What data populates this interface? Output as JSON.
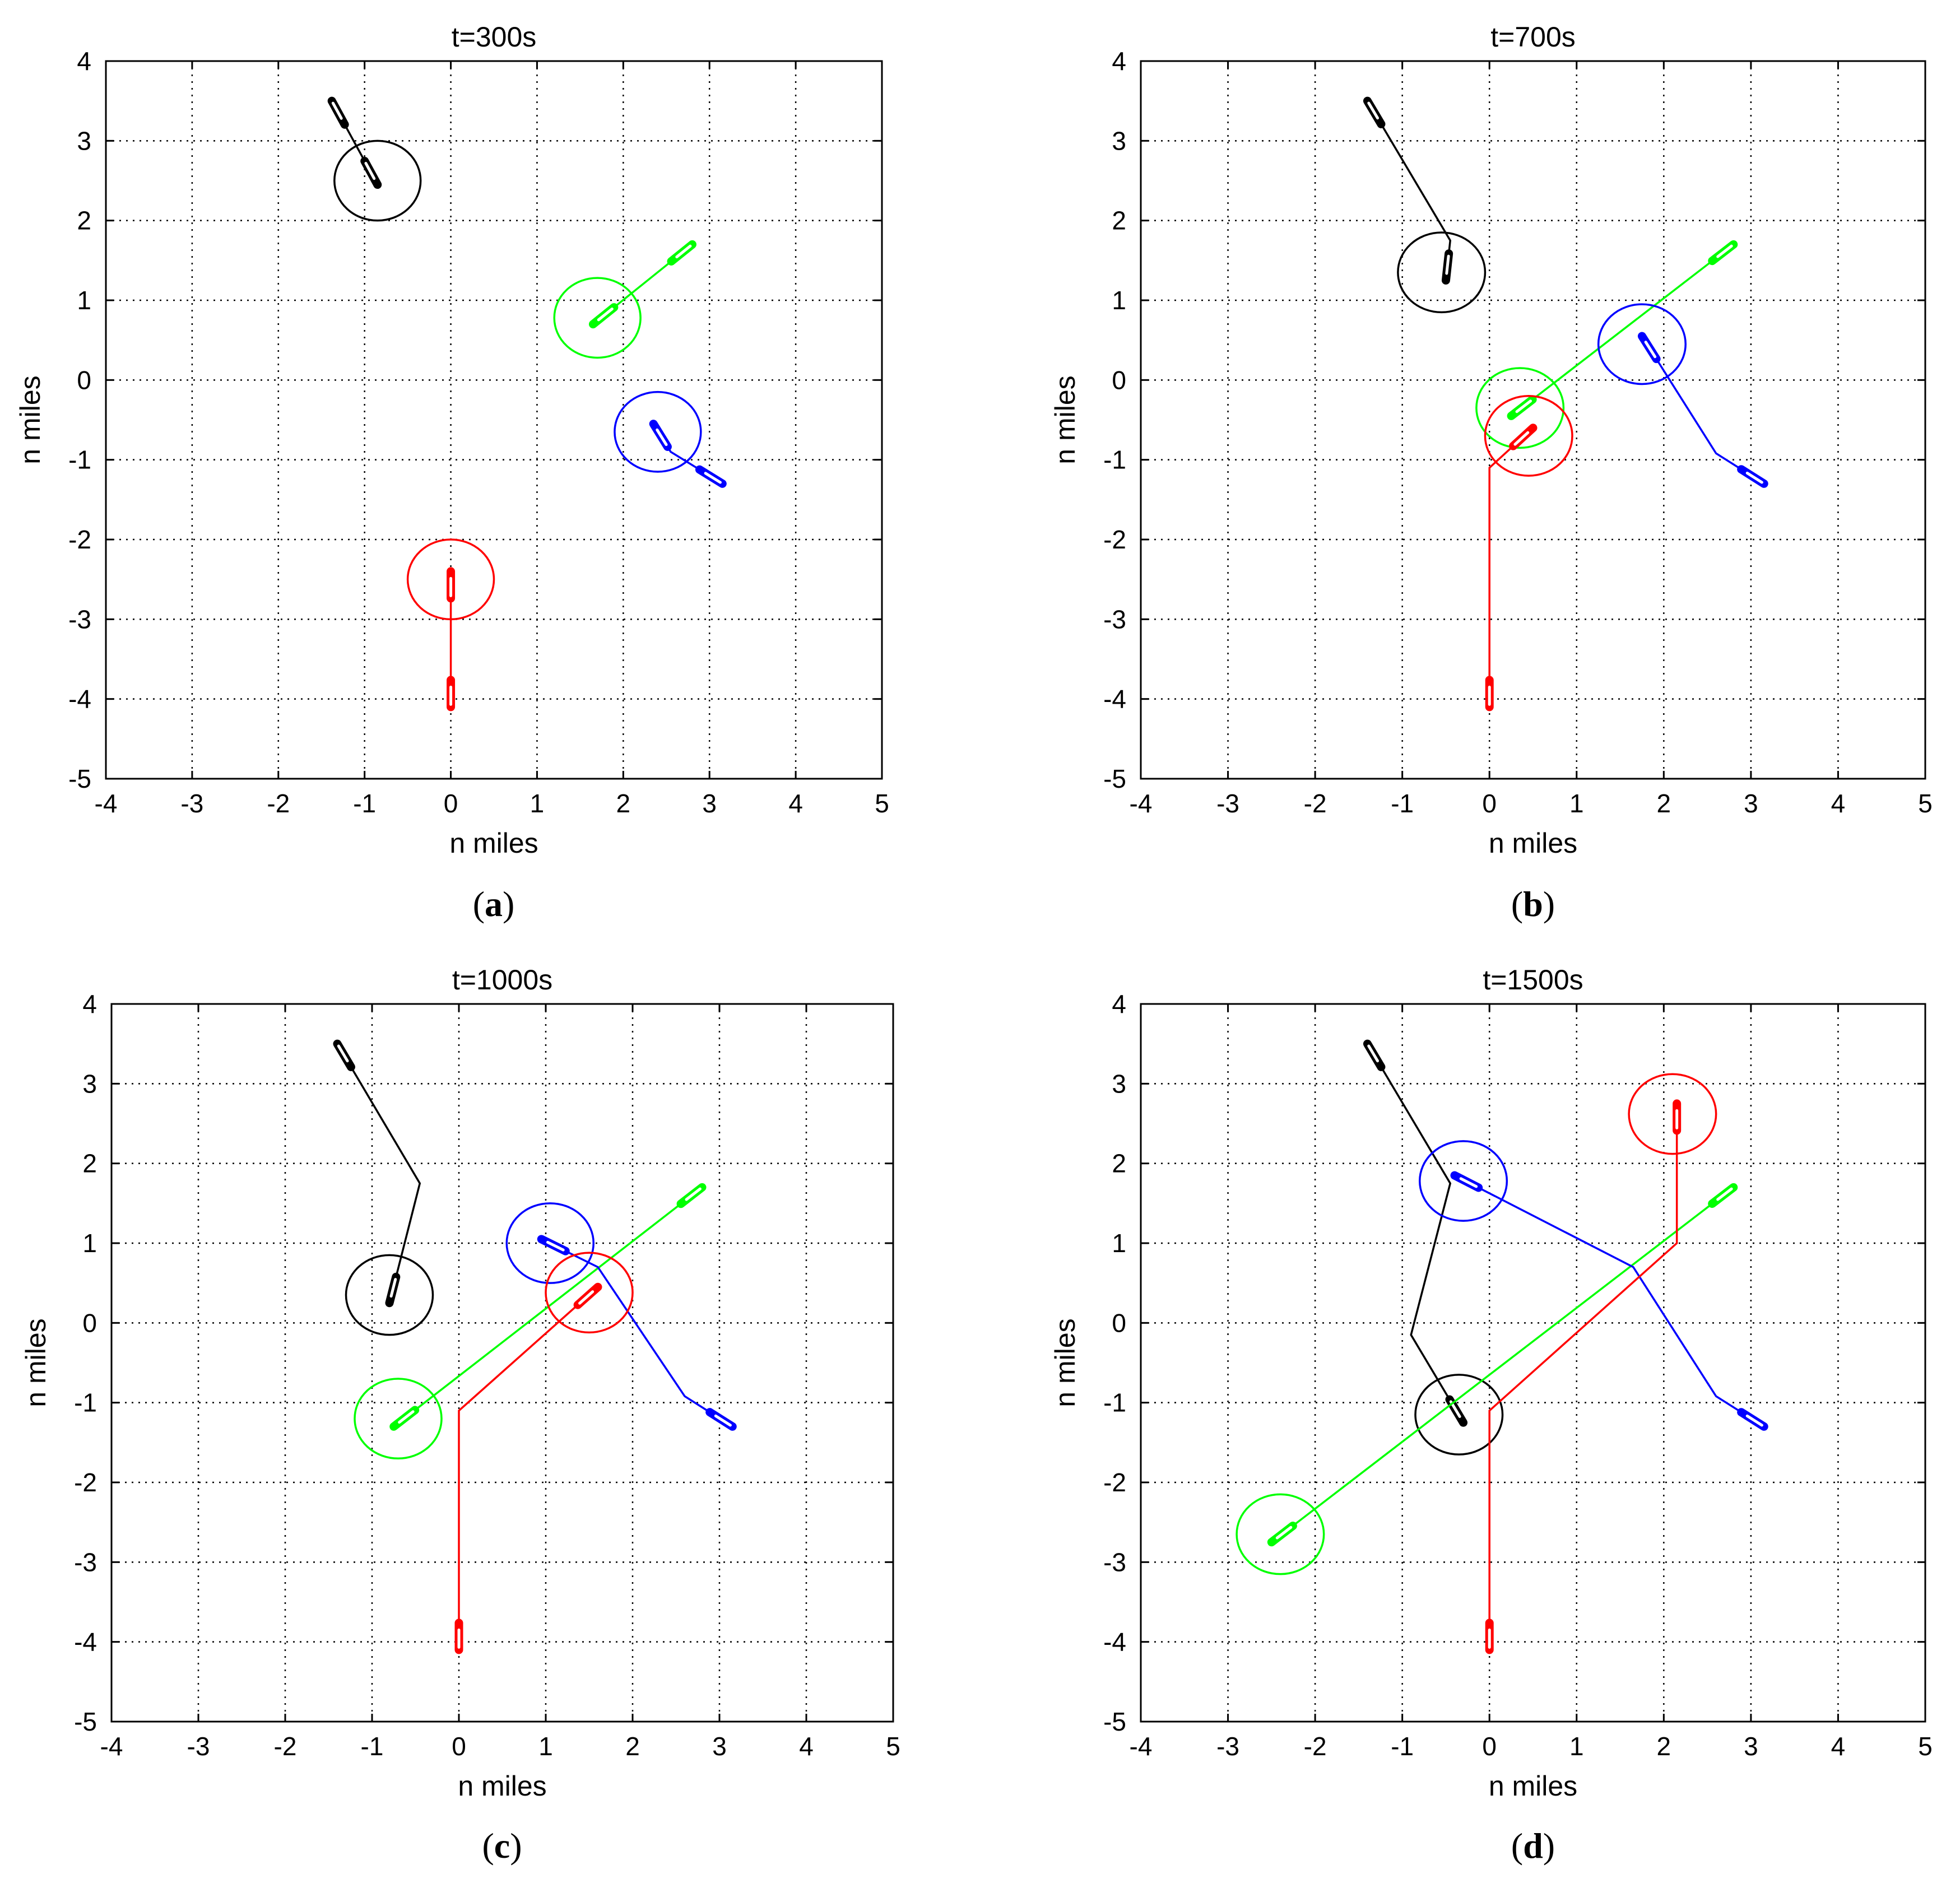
{
  "figure": {
    "colors": {
      "black": "#000000",
      "green": "#00ff00",
      "blue": "#0000ff",
      "red": "#ff0000"
    }
  },
  "chart_data": [
    {
      "type": "line",
      "panel_label": "a",
      "title": "t=300s",
      "xlabel": "n miles",
      "ylabel": "n miles",
      "xlim": [
        -4,
        5
      ],
      "ylim": [
        -5,
        4
      ],
      "xticks": [
        -4,
        -3,
        -2,
        -1,
        0,
        1,
        2,
        3,
        4,
        5
      ],
      "yticks": [
        -5,
        -4,
        -3,
        -2,
        -1,
        0,
        1,
        2,
        3,
        4
      ],
      "grid": true,
      "series": [
        {
          "color": "black",
          "path": [
            [
              -1.38,
              3.5
            ],
            [
              -0.85,
              2.45
            ]
          ],
          "start": [
            -1.38,
            3.5
          ],
          "current": [
            -0.85,
            2.45
          ],
          "circle": [
            -0.85,
            2.5
          ]
        },
        {
          "color": "green",
          "path": [
            [
              2.8,
              1.7
            ],
            [
              1.65,
              0.7
            ]
          ],
          "start": [
            2.8,
            1.7
          ],
          "current": [
            1.65,
            0.7
          ],
          "circle": [
            1.7,
            0.78
          ]
        },
        {
          "color": "blue",
          "path": [
            [
              3.15,
              -1.3
            ],
            [
              2.55,
              -0.9
            ],
            [
              2.35,
              -0.55
            ]
          ],
          "start": [
            3.15,
            -1.3
          ],
          "current": [
            2.35,
            -0.55
          ],
          "circle": [
            2.4,
            -0.65
          ]
        },
        {
          "color": "red",
          "path": [
            [
              0.0,
              -4.1
            ],
            [
              0.0,
              -2.4
            ]
          ],
          "start": [
            0.0,
            -4.1
          ],
          "current": [
            0.0,
            -2.4
          ],
          "circle": [
            0.0,
            -2.5
          ]
        }
      ]
    },
    {
      "type": "line",
      "panel_label": "b",
      "title": "t=700s",
      "xlabel": "n miles",
      "ylabel": "n miles",
      "xlim": [
        -4,
        5
      ],
      "ylim": [
        -5,
        4
      ],
      "xticks": [
        -4,
        -3,
        -2,
        -1,
        0,
        1,
        2,
        3,
        4,
        5
      ],
      "yticks": [
        -5,
        -4,
        -3,
        -2,
        -1,
        0,
        1,
        2,
        3,
        4
      ],
      "grid": true,
      "series": [
        {
          "color": "black",
          "path": [
            [
              -1.4,
              3.5
            ],
            [
              -0.45,
              1.75
            ],
            [
              -0.5,
              1.25
            ]
          ],
          "start": [
            -1.4,
            3.5
          ],
          "current": [
            -0.5,
            1.25
          ],
          "circle": [
            -0.55,
            1.35
          ]
        },
        {
          "color": "green",
          "path": [
            [
              2.8,
              1.7
            ],
            [
              0.25,
              -0.45
            ]
          ],
          "start": [
            2.8,
            1.7
          ],
          "current": [
            0.25,
            -0.45
          ],
          "circle": [
            0.35,
            -0.35
          ]
        },
        {
          "color": "blue",
          "path": [
            [
              3.15,
              -1.3
            ],
            [
              2.6,
              -0.92
            ],
            [
              1.75,
              0.55
            ]
          ],
          "start": [
            3.15,
            -1.3
          ],
          "current": [
            1.75,
            0.55
          ],
          "circle": [
            1.75,
            0.45
          ]
        },
        {
          "color": "red",
          "path": [
            [
              0.0,
              -4.1
            ],
            [
              0.0,
              -1.1
            ],
            [
              0.5,
              -0.6
            ]
          ],
          "start": [
            0.0,
            -4.1
          ],
          "current": [
            0.5,
            -0.6
          ],
          "circle": [
            0.45,
            -0.7
          ]
        }
      ]
    },
    {
      "type": "line",
      "panel_label": "c",
      "title": "t=1000s",
      "xlabel": "n miles",
      "ylabel": "n miles",
      "xlim": [
        -4,
        5
      ],
      "ylim": [
        -5,
        4
      ],
      "xticks": [
        -4,
        -3,
        -2,
        -1,
        0,
        1,
        2,
        3,
        4,
        5
      ],
      "yticks": [
        -5,
        -4,
        -3,
        -2,
        -1,
        0,
        1,
        2,
        3,
        4
      ],
      "grid": true,
      "series": [
        {
          "color": "black",
          "path": [
            [
              -1.4,
              3.5
            ],
            [
              -0.45,
              1.75
            ],
            [
              -0.8,
              0.25
            ]
          ],
          "start": [
            -1.4,
            3.5
          ],
          "current": [
            -0.8,
            0.25
          ],
          "circle": [
            -0.8,
            0.35
          ]
        },
        {
          "color": "green",
          "path": [
            [
              2.8,
              1.7
            ],
            [
              -0.75,
              -1.3
            ]
          ],
          "start": [
            2.8,
            1.7
          ],
          "current": [
            -0.75,
            -1.3
          ],
          "circle": [
            -0.7,
            -1.2
          ]
        },
        {
          "color": "blue",
          "path": [
            [
              3.15,
              -1.3
            ],
            [
              2.6,
              -0.92
            ],
            [
              1.6,
              0.7
            ],
            [
              0.95,
              1.05
            ]
          ],
          "start": [
            3.15,
            -1.3
          ],
          "current": [
            0.95,
            1.05
          ],
          "circle": [
            1.05,
            1.0
          ]
        },
        {
          "color": "red",
          "path": [
            [
              0.0,
              -4.1
            ],
            [
              0.0,
              -1.1
            ],
            [
              1.6,
              0.45
            ]
          ],
          "start": [
            0.0,
            -4.1
          ],
          "current": [
            1.6,
            0.45
          ],
          "circle": [
            1.5,
            0.38
          ]
        }
      ]
    },
    {
      "type": "line",
      "panel_label": "d",
      "title": "t=1500s",
      "xlabel": "n miles",
      "ylabel": "n miles",
      "xlim": [
        -4,
        5
      ],
      "ylim": [
        -5,
        4
      ],
      "xticks": [
        -4,
        -3,
        -2,
        -1,
        0,
        1,
        2,
        3,
        4,
        5
      ],
      "yticks": [
        -5,
        -4,
        -3,
        -2,
        -1,
        0,
        1,
        2,
        3,
        4
      ],
      "grid": true,
      "series": [
        {
          "color": "black",
          "path": [
            [
              -1.4,
              3.5
            ],
            [
              -0.45,
              1.75
            ],
            [
              -0.9,
              -0.15
            ],
            [
              -0.3,
              -1.25
            ]
          ],
          "start": [
            -1.4,
            3.5
          ],
          "current": [
            -0.3,
            -1.25
          ],
          "circle": [
            -0.35,
            -1.15
          ]
        },
        {
          "color": "green",
          "path": [
            [
              2.8,
              1.7
            ],
            [
              -2.5,
              -2.75
            ]
          ],
          "start": [
            2.8,
            1.7
          ],
          "current": [
            -2.5,
            -2.75
          ],
          "circle": [
            -2.4,
            -2.65
          ]
        },
        {
          "color": "blue",
          "path": [
            [
              3.15,
              -1.3
            ],
            [
              2.6,
              -0.92
            ],
            [
              1.65,
              0.7
            ],
            [
              -0.4,
              1.85
            ]
          ],
          "start": [
            3.15,
            -1.3
          ],
          "current": [
            -0.4,
            1.85
          ],
          "circle": [
            -0.3,
            1.78
          ]
        },
        {
          "color": "red",
          "path": [
            [
              0.0,
              -4.1
            ],
            [
              0.0,
              -1.1
            ],
            [
              2.15,
              1.0
            ],
            [
              2.15,
              2.75
            ]
          ],
          "start": [
            0.0,
            -4.1
          ],
          "current": [
            2.15,
            2.75
          ],
          "circle": [
            2.1,
            2.62
          ]
        }
      ]
    }
  ]
}
